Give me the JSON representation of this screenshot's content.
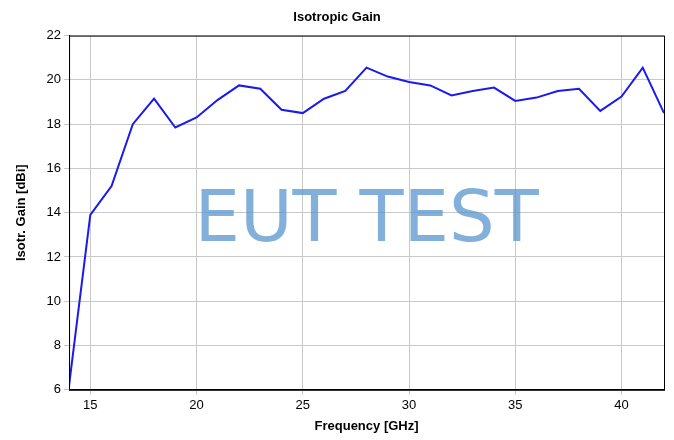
{
  "chart_data": {
    "type": "line",
    "title": "Isotropic Gain",
    "x_label": "Frequency [GHz]",
    "y_label": "Isotr. Gain [dBi]",
    "annotations": [
      "EUT TEST"
    ],
    "x": [
      14,
      15,
      16,
      17,
      18,
      19,
      20,
      21,
      22,
      23,
      24,
      25,
      26,
      27,
      28,
      29,
      30,
      31,
      32,
      33,
      34,
      35,
      36,
      37,
      38,
      39,
      40,
      41,
      42
    ],
    "values": [
      6.2,
      13.9,
      15.2,
      18.0,
      19.15,
      17.85,
      18.3,
      19.1,
      19.75,
      19.6,
      18.65,
      18.5,
      19.15,
      19.5,
      20.55,
      20.15,
      19.9,
      19.75,
      19.3,
      19.5,
      19.65,
      19.05,
      19.2,
      19.5,
      19.6,
      18.6,
      19.25,
      20.55,
      18.5
    ],
    "color": "#1a1aee",
    "xlim": [
      14,
      42
    ],
    "xticks": [
      15,
      20,
      25,
      30,
      35,
      40
    ],
    "ylim": [
      6,
      22
    ],
    "yticks": [
      6,
      8,
      10,
      12,
      14,
      16,
      18,
      20,
      22
    ],
    "grid": true
  }
}
